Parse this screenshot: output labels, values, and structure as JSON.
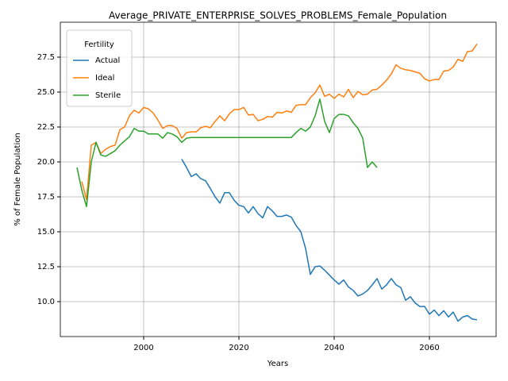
{
  "chart_data": {
    "type": "line",
    "title": "Average_PRIVATE_ENTERPRISE_SOLVES_PROBLEMS_Female_Population",
    "x_label": "Years",
    "y_label": "% of Female Population",
    "legend_title": "Fertility",
    "legend": "upper left",
    "grid": true,
    "xlim": [
      1982.5,
      2074
    ],
    "xticks": [
      2000,
      2020,
      2040,
      2060
    ],
    "ylim": [
      7.5,
      30
    ],
    "yticks": [
      {
        "value": 10,
        "label": "10.0"
      },
      12.5,
      {
        "value": 15,
        "label": "15.0"
      },
      17.5,
      {
        "value": 20,
        "label": "20.0"
      },
      22.5,
      {
        "value": 25,
        "label": "25.0"
      },
      27.5
    ],
    "x": [
      1986,
      1987,
      1988,
      1989,
      1990,
      1991,
      1992,
      1993,
      1994,
      1995,
      1996,
      1997,
      1998,
      1999,
      2000,
      2001,
      2002,
      2003,
      2004,
      2005,
      2006,
      2007,
      2008,
      2009,
      2010,
      2011,
      2012,
      2013,
      2014,
      2015,
      2016,
      2017,
      2018,
      2019,
      2020,
      2021,
      2022,
      2023,
      2024,
      2025,
      2026,
      2027,
      2028,
      2029,
      2030,
      2031,
      2032,
      2033,
      2034,
      2035,
      2036,
      2037,
      2038,
      2039,
      2040,
      2041,
      2042,
      2043,
      2044,
      2045,
      2046,
      2047,
      2048,
      2049,
      2050,
      2051,
      2052,
      2053,
      2054,
      2055,
      2056,
      2057,
      2058,
      2059,
      2060,
      2061,
      2062,
      2063,
      2064,
      2065,
      2066,
      2067,
      2068,
      2069,
      2070
    ],
    "series": [
      {
        "name": "Actual",
        "color": "#1f77b4",
        "values": [
          null,
          null,
          null,
          null,
          null,
          null,
          null,
          null,
          null,
          null,
          null,
          null,
          null,
          null,
          null,
          null,
          null,
          null,
          null,
          null,
          null,
          null,
          20.2,
          19.6,
          18.95,
          19.15,
          18.8,
          18.65,
          18.1,
          17.5,
          17.05,
          17.8,
          17.8,
          17.25,
          16.9,
          16.8,
          16.35,
          16.8,
          16.3,
          16.0,
          16.8,
          16.5,
          16.1,
          16.1,
          16.2,
          16.05,
          15.45,
          15.0,
          13.8,
          11.95,
          12.5,
          12.55,
          12.25,
          11.9,
          11.55,
          11.25,
          11.55,
          11.05,
          10.8,
          10.4,
          10.55,
          10.8,
          11.2,
          11.65,
          10.9,
          11.2,
          11.65,
          11.2,
          11.0,
          10.1,
          10.35,
          9.9,
          9.65,
          9.65,
          9.1,
          9.4,
          9.0,
          9.35,
          8.9,
          9.25,
          8.6,
          8.9,
          9.0,
          8.75,
          8.7
        ]
      },
      {
        "name": "Ideal",
        "color": "#ff7f0e",
        "values": [
          null,
          18.6,
          17.3,
          21.2,
          21.4,
          20.6,
          20.9,
          21.1,
          21.2,
          22.3,
          22.5,
          23.3,
          23.7,
          23.5,
          23.9,
          23.8,
          23.5,
          23.0,
          22.4,
          22.6,
          22.6,
          22.4,
          21.7,
          22.1,
          22.15,
          22.15,
          22.45,
          22.55,
          22.45,
          22.9,
          23.3,
          22.95,
          23.45,
          23.75,
          23.75,
          23.9,
          23.35,
          23.4,
          22.95,
          23.05,
          23.25,
          23.2,
          23.55,
          23.5,
          23.65,
          23.55,
          24.05,
          24.1,
          24.1,
          24.6,
          24.95,
          25.5,
          24.7,
          24.85,
          24.55,
          24.85,
          24.65,
          25.2,
          24.6,
          25.05,
          24.8,
          24.85,
          25.15,
          25.2,
          25.5,
          25.85,
          26.3,
          26.95,
          26.7,
          26.6,
          26.55,
          26.45,
          26.35,
          25.95,
          25.8,
          25.9,
          25.9,
          26.5,
          26.55,
          26.8,
          27.35,
          27.2,
          27.9,
          27.95,
          28.45
        ]
      },
      {
        "name": "Sterile",
        "color": "#2ca02c",
        "values": [
          19.6,
          18.0,
          16.8,
          20.0,
          21.4,
          20.5,
          20.4,
          20.6,
          20.8,
          21.2,
          21.5,
          21.8,
          22.4,
          22.2,
          22.2,
          22.0,
          22.0,
          22.0,
          21.7,
          22.1,
          22.0,
          21.8,
          21.4,
          21.7,
          21.75,
          21.75,
          21.75,
          21.75,
          21.75,
          21.75,
          21.75,
          21.75,
          21.75,
          21.75,
          21.75,
          21.75,
          21.75,
          21.75,
          21.75,
          21.75,
          21.75,
          21.75,
          21.75,
          21.75,
          21.75,
          21.75,
          22.1,
          22.4,
          22.2,
          22.5,
          23.3,
          24.5,
          22.9,
          22.1,
          23.1,
          23.4,
          23.4,
          23.3,
          22.8,
          22.4,
          21.7,
          19.6,
          20.0,
          19.6,
          null,
          null,
          null,
          null,
          null,
          null,
          null,
          null,
          null,
          null,
          null,
          null,
          null,
          null,
          null,
          null,
          null,
          null,
          null,
          null,
          null
        ]
      }
    ]
  }
}
